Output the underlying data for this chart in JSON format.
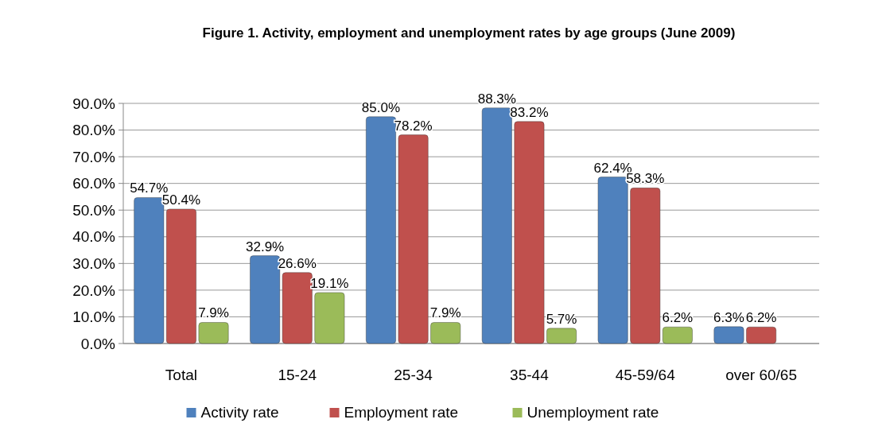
{
  "chart_data": {
    "type": "bar",
    "title": "Figure 1. Activity, employment and unemployment rates by age groups (June 2009)",
    "categories": [
      "Total",
      "15-24",
      "25-34",
      "35-44",
      "45-59/64",
      "over 60/65"
    ],
    "series": [
      {
        "name": "Activity rate",
        "color": "#4f81bd",
        "values": [
          54.7,
          32.9,
          85.0,
          88.3,
          62.4,
          6.3
        ],
        "value_labels": [
          "54.7%",
          "32.9%",
          "85.0%",
          "88.3%",
          "62.4%",
          "6.3%"
        ]
      },
      {
        "name": "Employment rate",
        "color": "#c0504d",
        "values": [
          50.4,
          26.6,
          78.2,
          83.2,
          58.3,
          6.2
        ],
        "value_labels": [
          "50.4%",
          "26.6%",
          "78.2%",
          "83.2%",
          "58.3%",
          "6.2%"
        ]
      },
      {
        "name": "Unemployment rate",
        "color": "#9bbb59",
        "values": [
          7.9,
          19.1,
          7.9,
          5.7,
          6.2,
          null
        ],
        "value_labels": [
          "7.9%",
          "19.1%",
          "7.9%",
          "5.7%",
          "6.2%",
          null
        ]
      }
    ],
    "ylim": [
      0,
      90
    ],
    "yticks": [
      {
        "value": 0,
        "label": "0.0%"
      },
      {
        "value": 10,
        "label": "10.0%"
      },
      {
        "value": 20,
        "label": "20.0%"
      },
      {
        "value": 30,
        "label": "30.0%"
      },
      {
        "value": 40,
        "label": "40.0%"
      },
      {
        "value": 50,
        "label": "50.0%"
      },
      {
        "value": 60,
        "label": "60.0%"
      },
      {
        "value": 70,
        "label": "70.0%"
      },
      {
        "value": 80,
        "label": "80.0%"
      },
      {
        "value": 90,
        "label": "90.0%"
      }
    ],
    "grid": "y",
    "legend": "bottom"
  }
}
